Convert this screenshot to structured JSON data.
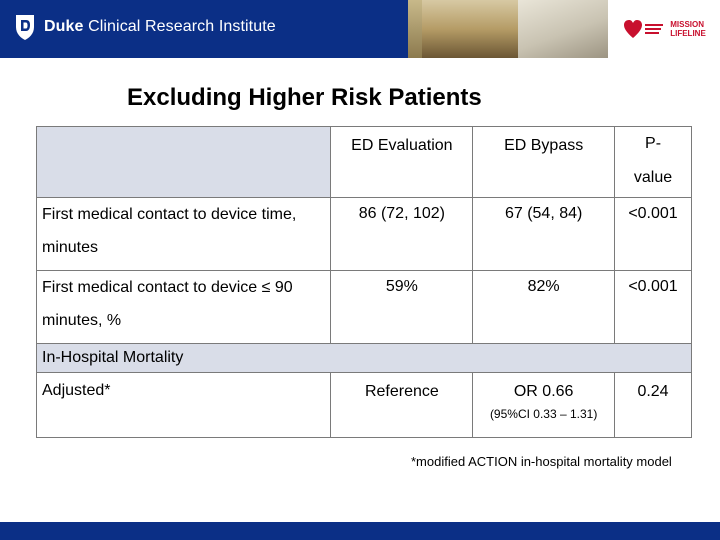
{
  "header": {
    "brand_bold": "Duke",
    "brand_rest": " Clinical Research Institute",
    "partner_text": [
      "MISSION",
      "LIFELINE"
    ],
    "colors": {
      "bar": "#0b2f86",
      "accent_red": "#c8102e",
      "shade": "#d9dde8"
    }
  },
  "title": "Excluding Higher Risk Patients",
  "table": {
    "col1": "ED Evaluation",
    "col2": "ED Bypass",
    "col3": "P-\nvalue",
    "row1": {
      "label": "First medical contact to device time, minutes",
      "v1": "86 (72, 102)",
      "v2": "67 (54, 84)",
      "p": "<0.001"
    },
    "row2": {
      "label": "First medical contact to device ≤ 90 minutes, %",
      "v1": "59%",
      "v2": "82%",
      "p": "<0.001"
    },
    "section": "In-Hospital Mortality",
    "row3": {
      "label": "Adjusted*",
      "v1": "Reference",
      "v2": "OR 0.66",
      "v2_sub": "(95%CI 0.33 – 1.31)",
      "p": "0.24"
    }
  },
  "footnote": "*modified ACTION in-hospital mortality model"
}
